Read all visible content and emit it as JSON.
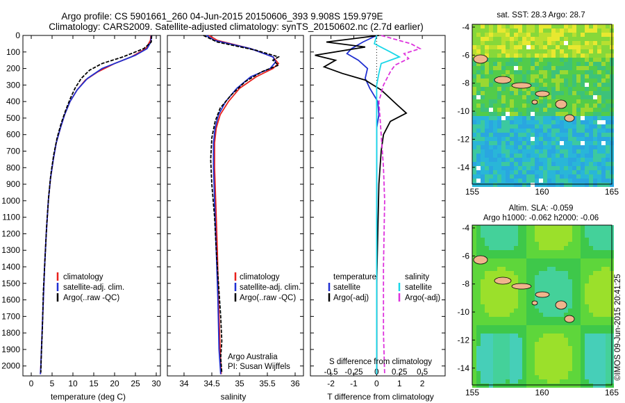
{
  "title_line1": "Argo profile: CS 5901661_260 04-Jun-2015 20150606_393 9.908S 159.979E",
  "title_line2": "Climatology: CARS2009. Satellite-adjusted climatology: synTS_20150602.nc (2.7d earlier)",
  "chart_data": [
    {
      "type": "line",
      "name": "temperature",
      "xlabel": "temperature (deg C)",
      "xlim": [
        -2,
        31
      ],
      "xticks": [
        0,
        5,
        10,
        15,
        20,
        25,
        30
      ],
      "ylim": [
        2060,
        0
      ],
      "yticks": [
        0,
        100,
        200,
        300,
        400,
        500,
        600,
        700,
        800,
        900,
        1000,
        1100,
        1200,
        1300,
        1400,
        1500,
        1600,
        1700,
        1800,
        1900,
        2000
      ],
      "legend": [
        "climatology",
        "satellite-adj. clim.",
        "Argo(..raw -QC)"
      ],
      "series": [
        {
          "name": "climatology",
          "color": "#e8201c",
          "points": [
            [
              28.7,
              0
            ],
            [
              28.6,
              30
            ],
            [
              27.5,
              80
            ],
            [
              24,
              130
            ],
            [
              20,
              170
            ],
            [
              16,
              220
            ],
            [
              13,
              270
            ],
            [
              11,
              330
            ],
            [
              9.3,
              400
            ],
            [
              8,
              480
            ],
            [
              7,
              560
            ],
            [
              6,
              650
            ],
            [
              5.3,
              750
            ],
            [
              4.6,
              870
            ],
            [
              4.1,
              1000
            ],
            [
              3.6,
              1200
            ],
            [
              3.2,
              1400
            ],
            [
              2.9,
              1600
            ],
            [
              2.6,
              1800
            ],
            [
              2.3,
              2000
            ],
            [
              2.2,
              2050
            ]
          ]
        },
        {
          "name": "satellite-adj. clim.",
          "color": "#1f2fd1",
          "points": [
            [
              28.8,
              0
            ],
            [
              28.7,
              40
            ],
            [
              27.8,
              80
            ],
            [
              25,
              120
            ],
            [
              21,
              160
            ],
            [
              17,
              200
            ],
            [
              13.5,
              260
            ],
            [
              11,
              330
            ],
            [
              9.3,
              400
            ],
            [
              8,
              480
            ],
            [
              7,
              560
            ],
            [
              6,
              650
            ],
            [
              5.3,
              750
            ],
            [
              4.6,
              870
            ],
            [
              4.1,
              1000
            ],
            [
              3.6,
              1200
            ],
            [
              3.2,
              1400
            ],
            [
              2.9,
              1600
            ],
            [
              2.6,
              1800
            ],
            [
              2.3,
              2000
            ],
            [
              2.2,
              2050
            ]
          ]
        },
        {
          "name": "Argo(..raw -QC)",
          "color": "#000000",
          "points": [
            [
              28.9,
              0
            ],
            [
              28.8,
              40
            ],
            [
              27,
              80
            ],
            [
              22,
              130
            ],
            [
              17,
              170
            ],
            [
              14,
              210
            ],
            [
              12,
              260
            ],
            [
              10.5,
              320
            ],
            [
              9.4,
              380
            ],
            [
              8.3,
              450
            ],
            [
              7.2,
              530
            ],
            [
              6.2,
              620
            ],
            [
              5.4,
              720
            ],
            [
              4.7,
              840
            ],
            [
              4.2,
              970
            ],
            [
              3.7,
              1150
            ],
            [
              3.3,
              1350
            ],
            [
              2.9,
              1550
            ],
            [
              2.7,
              1750
            ],
            [
              2.4,
              1950
            ],
            [
              2.3,
              2040
            ]
          ]
        }
      ]
    },
    {
      "type": "line",
      "name": "salinity",
      "xlabel": "salinity",
      "xlim": [
        33.7,
        36.15
      ],
      "xticks": [
        34,
        34.5,
        35,
        35.5,
        36
      ],
      "ylim": [
        2060,
        0
      ],
      "legend": [
        "climatology",
        "satellite-adj. clim.",
        "Argo(..raw -QC)"
      ],
      "annotation_line1": "Argo Australia",
      "annotation_line2": "PI: Susan Wijffels",
      "series": [
        {
          "name": "climatology",
          "color": "#e8201c",
          "points": [
            [
              34.45,
              0
            ],
            [
              34.6,
              30
            ],
            [
              35.2,
              80
            ],
            [
              35.6,
              130
            ],
            [
              35.7,
              170
            ],
            [
              35.6,
              200
            ],
            [
              35.3,
              250
            ],
            [
              35.0,
              320
            ],
            [
              34.8,
              400
            ],
            [
              34.65,
              480
            ],
            [
              34.58,
              560
            ],
            [
              34.55,
              650
            ],
            [
              34.55,
              800
            ],
            [
              34.57,
              1000
            ],
            [
              34.6,
              1300
            ],
            [
              34.62,
              1600
            ],
            [
              34.65,
              1900
            ],
            [
              34.67,
              2050
            ]
          ]
        },
        {
          "name": "satellite-adj. clim.",
          "color": "#1f2fd1",
          "points": [
            [
              34.4,
              0
            ],
            [
              34.55,
              30
            ],
            [
              35.2,
              80
            ],
            [
              35.6,
              130
            ],
            [
              35.65,
              160
            ],
            [
              35.55,
              200
            ],
            [
              35.2,
              250
            ],
            [
              34.95,
              320
            ],
            [
              34.75,
              400
            ],
            [
              34.62,
              480
            ],
            [
              34.56,
              560
            ],
            [
              34.53,
              650
            ],
            [
              34.53,
              800
            ],
            [
              34.55,
              1000
            ],
            [
              34.58,
              1300
            ],
            [
              34.61,
              1600
            ],
            [
              34.63,
              1900
            ],
            [
              34.66,
              2050
            ]
          ]
        },
        {
          "name": "Argo(..raw -QC)",
          "color": "#000000",
          "points": [
            [
              34.35,
              0
            ],
            [
              34.6,
              40
            ],
            [
              35.3,
              90
            ],
            [
              35.7,
              130
            ],
            [
              35.6,
              150
            ],
            [
              35.7,
              180
            ],
            [
              35.4,
              220
            ],
            [
              35.1,
              280
            ],
            [
              34.85,
              360
            ],
            [
              34.65,
              440
            ],
            [
              34.56,
              520
            ],
            [
              34.5,
              620
            ],
            [
              34.48,
              750
            ],
            [
              34.5,
              900
            ],
            [
              34.55,
              1100
            ],
            [
              34.58,
              1300
            ],
            [
              34.62,
              1500
            ],
            [
              34.66,
              1700
            ],
            [
              34.68,
              1850
            ],
            [
              34.66,
              1950
            ],
            [
              34.68,
              2040
            ]
          ]
        }
      ]
    },
    {
      "type": "line",
      "name": "differences",
      "xlabel": "T difference from climatology",
      "xlabel_top": "S difference from climatology",
      "xlim": [
        -2.9,
        3.0
      ],
      "xticks": [
        -2,
        -1,
        0,
        1,
        2
      ],
      "xticks_top_labels": [
        "-0.5",
        "-0.25",
        "0",
        "0.25",
        "0.5"
      ],
      "xticks_top_pos": [
        -2,
        -1,
        0,
        1,
        2
      ],
      "ylim": [
        2060,
        0
      ],
      "legend_temperature": "temperature",
      "legend_salinity": "salinity",
      "legend_entries": [
        "satellite",
        "Argo(-adj)",
        "satellite",
        "Argo(-adj)"
      ],
      "series": [
        {
          "name": "T satellite",
          "color": "#1f2fd1",
          "points": [
            [
              0,
              0
            ],
            [
              -0.6,
              40
            ],
            [
              -1.1,
              80
            ],
            [
              -1.3,
              110
            ],
            [
              -0.8,
              150
            ],
            [
              -0.4,
              200
            ],
            [
              -0.5,
              260
            ],
            [
              -0.3,
              320
            ],
            [
              0.05,
              400
            ],
            [
              0.1,
              480
            ],
            [
              0.0,
              560
            ],
            [
              0,
              700
            ],
            [
              0,
              1000
            ],
            [
              0,
              1500
            ],
            [
              0,
              2050
            ]
          ]
        },
        {
          "name": "T Argo(-adj)",
          "color": "#000000",
          "points": [
            [
              0.1,
              0
            ],
            [
              -2.2,
              40
            ],
            [
              -0.5,
              70
            ],
            [
              -2.7,
              120
            ],
            [
              -1.8,
              150
            ],
            [
              -2.3,
              190
            ],
            [
              -1.5,
              230
            ],
            [
              -0.5,
              270
            ],
            [
              0.2,
              330
            ],
            [
              0.9,
              420
            ],
            [
              1.3,
              470
            ],
            [
              0.6,
              520
            ],
            [
              0.3,
              600
            ],
            [
              0.2,
              700
            ],
            [
              0.1,
              900
            ],
            [
              0.05,
              1200
            ],
            [
              0,
              1500
            ],
            [
              0,
              2050
            ]
          ]
        },
        {
          "name": "S satellite",
          "color": "#19d7e8",
          "points": [
            [
              0,
              0
            ],
            [
              -0.1,
              50
            ],
            [
              0.6,
              100
            ],
            [
              1.0,
              130
            ],
            [
              0.2,
              170
            ],
            [
              0.1,
              230
            ],
            [
              0.0,
              300
            ],
            [
              0,
              500
            ],
            [
              0,
              1000
            ],
            [
              0,
              2050
            ]
          ]
        },
        {
          "name": "S Argo(-adj)",
          "color": "#dd33dd",
          "points": [
            [
              0.2,
              0
            ],
            [
              1.5,
              50
            ],
            [
              1.9,
              80
            ],
            [
              1.2,
              110
            ],
            [
              1.4,
              140
            ],
            [
              0.8,
              180
            ],
            [
              0.6,
              220
            ],
            [
              0.3,
              300
            ],
            [
              0.1,
              400
            ],
            [
              0.2,
              600
            ],
            [
              0.3,
              800
            ],
            [
              0.35,
              1000
            ],
            [
              0.3,
              1400
            ],
            [
              0.3,
              1800
            ],
            [
              0.35,
              2050
            ]
          ]
        }
      ]
    }
  ],
  "maps": [
    {
      "title": "sat. SST: 28.3 Argo: 28.7",
      "xticks": [
        "155",
        "160",
        "165"
      ],
      "yticks": [
        "-4",
        "-6",
        "-8",
        "-10",
        "-12",
        "-14"
      ]
    },
    {
      "title_line1": "Altim. SLA: -0.059",
      "title_line2": "Argo h1000: -0.062 h2000: -0.06",
      "xticks": [
        "155",
        "160",
        "165"
      ],
      "yticks": [
        "-4",
        "-6",
        "-8",
        "-10",
        "-12",
        "-14"
      ]
    }
  ],
  "credit": "©IMOS 09-Jun-2015 20:41:25"
}
